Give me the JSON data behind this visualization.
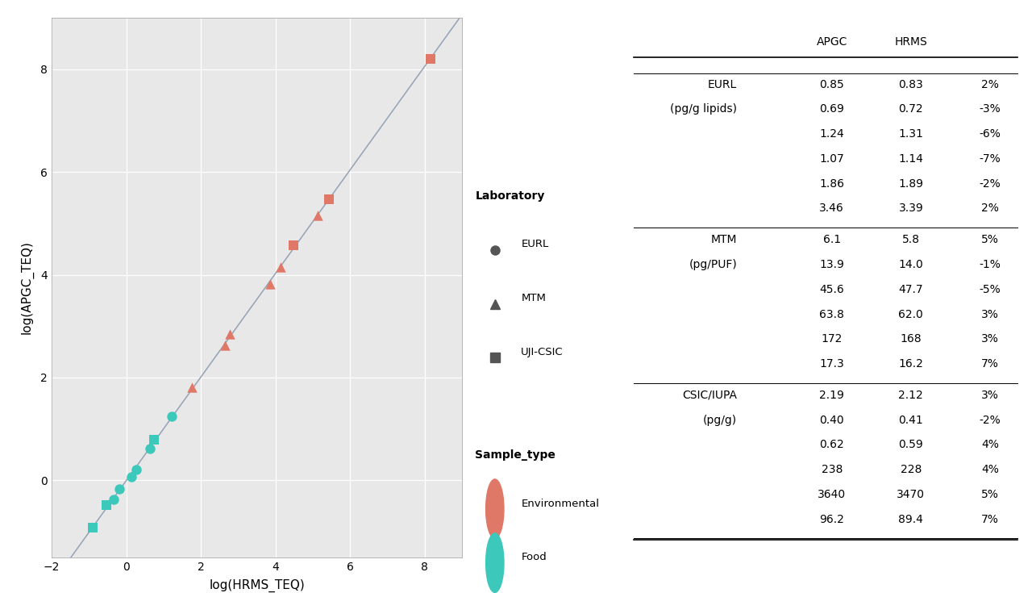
{
  "plot_bg": "#e8e8e8",
  "fig_bg": "#f5f5f5",
  "outer_bg": "#ffffff",
  "line_color": "#8a9bb0",
  "env_color": "#e07868",
  "food_color": "#3dc8bc",
  "scatter_alpha": 1.0,
  "xlabel": "log(HRMS_TEQ)",
  "ylabel": "log(APGC_TEQ)",
  "xlim": [
    -2.0,
    9.0
  ],
  "ylim": [
    -1.5,
    9.0
  ],
  "xticks": [
    -2,
    0,
    2,
    4,
    6,
    8
  ],
  "yticks": [
    0,
    2,
    4,
    6,
    8
  ],
  "eurl_hrms": [
    0.83,
    0.72,
    1.31,
    1.14,
    1.89,
    3.39
  ],
  "eurl_apgc": [
    0.85,
    0.69,
    1.24,
    1.07,
    1.86,
    3.46
  ],
  "mtm_hrms": [
    5.8,
    14.0,
    47.7,
    62.0,
    168.0,
    16.2
  ],
  "mtm_apgc": [
    6.1,
    13.9,
    45.6,
    63.8,
    172.0,
    17.3
  ],
  "csic_food_hrms": [
    0.41,
    0.59,
    2.12
  ],
  "csic_food_apgc": [
    0.4,
    0.62,
    2.19
  ],
  "csic_env_hrms": [
    228.0,
    89.4,
    3470.0
  ],
  "csic_env_apgc": [
    238.0,
    96.2,
    3640.0
  ],
  "table_groups": [
    {
      "lab": "EURL",
      "unit": "(pg/g lipids)",
      "rows": [
        [
          "0.85",
          "0.83",
          "2%"
        ],
        [
          "0.69",
          "0.72",
          "-3%"
        ],
        [
          "1.24",
          "1.31",
          "-6%"
        ],
        [
          "1.07",
          "1.14",
          "-7%"
        ],
        [
          "1.86",
          "1.89",
          "-2%"
        ],
        [
          "3.46",
          "3.39",
          "2%"
        ]
      ]
    },
    {
      "lab": "MTM",
      "unit": "(pg/PUF)",
      "rows": [
        [
          "6.1",
          "5.8",
          "5%"
        ],
        [
          "13.9",
          "14.0",
          "-1%"
        ],
        [
          "45.6",
          "47.7",
          "-5%"
        ],
        [
          "63.8",
          "62.0",
          "3%"
        ],
        [
          "172",
          "168",
          "3%"
        ],
        [
          "17.3",
          "16.2",
          "7%"
        ]
      ]
    },
    {
      "lab": "CSIC/IUPA",
      "unit": "(pg/g)",
      "rows": [
        [
          "2.19",
          "2.12",
          "3%"
        ],
        [
          "0.40",
          "0.41",
          "-2%"
        ],
        [
          "0.62",
          "0.59",
          "4%"
        ],
        [
          "238",
          "228",
          "4%"
        ],
        [
          "3640",
          "3470",
          "5%"
        ],
        [
          "96.2",
          "89.4",
          "7%"
        ]
      ]
    }
  ],
  "legend_lab_title": "Laboratory",
  "legend_samp_title": "Sample_type",
  "legend_labs": [
    "EURL",
    "MTM",
    "UJI-CSIC"
  ],
  "legend_types": [
    "Environmental",
    "Food"
  ],
  "marker_size": 80
}
